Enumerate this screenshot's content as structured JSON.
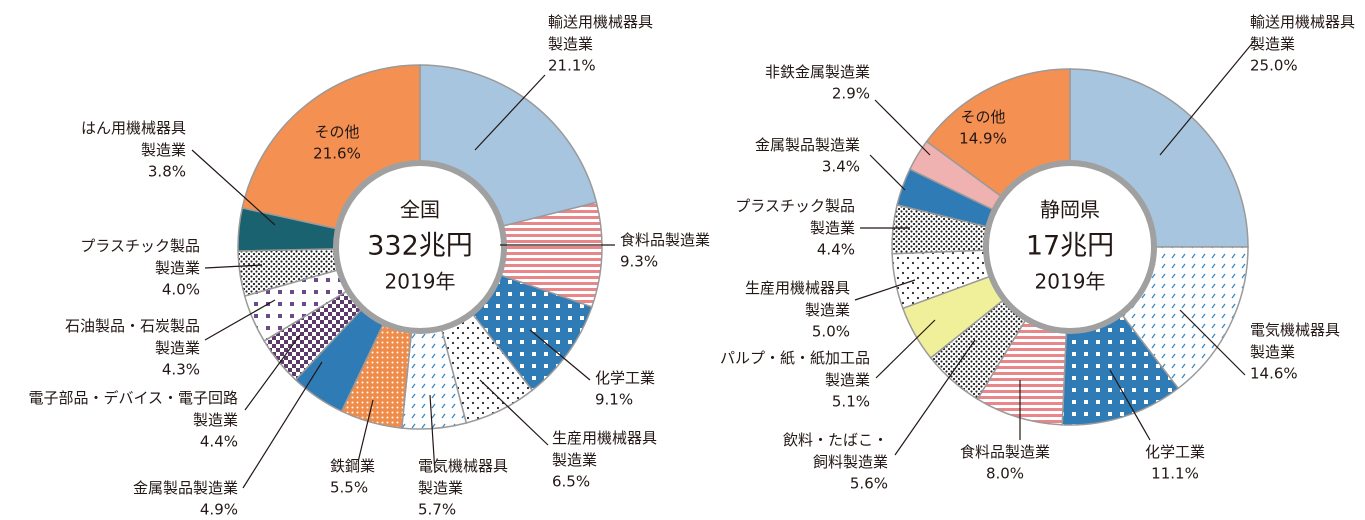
{
  "chart_data": [
    {
      "type": "pie",
      "center": [
        "全国",
        "332兆円",
        "2019年"
      ],
      "categories": [
        "輸送用機械器具\n製造業",
        "食料品製造業",
        "化学工業",
        "生産用機械器具\n製造業",
        "電気機械器具\n製造業",
        "鉄鋼業",
        "金属製品製造業",
        "電子部品・デバイス・電子回路\n製造業",
        "石油製品・石炭製品\n製造業",
        "プラスチック製品\n製造業",
        "はん用機械器具\n製造業",
        "その他"
      ],
      "values": [
        21.1,
        9.3,
        9.1,
        6.5,
        5.7,
        5.5,
        4.9,
        4.4,
        4.3,
        4.0,
        3.8,
        21.6
      ],
      "value_labels": [
        "21.1%",
        "9.3%",
        "9.1%",
        "6.5%",
        "5.7%",
        "5.5%",
        "4.9%",
        "4.4%",
        "4.3%",
        "4.0%",
        "3.8%",
        "21.6%"
      ],
      "colors": [
        "#a7c5de",
        "#e8868a",
        "#2f7bb6",
        "#222222",
        "#3a8ac6",
        "#f08c4a",
        "#2f7bb6",
        "#5a3b6b",
        "#6b4a8a",
        "#222222",
        "#1a6270",
        "#f39052"
      ],
      "patterns": [
        "solid",
        "stripes",
        "squares",
        "dots",
        "dashes",
        "dots-on",
        "solid",
        "checker",
        "squares-on-white",
        "dense-dots",
        "solid",
        "solid"
      ]
    },
    {
      "type": "pie",
      "center": [
        "静岡県",
        "17兆円",
        "2019年"
      ],
      "categories": [
        "輸送用機械器具\n製造業",
        "電気機械器具\n製造業",
        "化学工業",
        "食料品製造業",
        "飲料・たばこ・\n飼料製造業",
        "パルプ・紙・紙加工品\n製造業",
        "生産用機械器具\n製造業",
        "プラスチック製品\n製造業",
        "金属製品製造業",
        "非鉄金属製造業",
        "その他"
      ],
      "values": [
        25.0,
        14.6,
        11.1,
        8.0,
        5.6,
        5.1,
        5.0,
        4.4,
        3.4,
        2.9,
        14.9
      ],
      "value_labels": [
        "25.0%",
        "14.6%",
        "11.1%",
        "8.0%",
        "5.6%",
        "5.1%",
        "5.0%",
        "4.4%",
        "3.4%",
        "2.9%",
        "14.9%"
      ],
      "colors": [
        "#a7c5de",
        "#3a8ac6",
        "#2f7bb6",
        "#e8868a",
        "#222222",
        "#f1f09a",
        "#222222",
        "#222222",
        "#2f7bb6",
        "#f0b1b1",
        "#f39052"
      ],
      "patterns": [
        "solid",
        "dashes",
        "squares",
        "stripes",
        "dense-dots",
        "solid",
        "dots",
        "dense-dots",
        "solid",
        "solid",
        "solid"
      ]
    }
  ]
}
